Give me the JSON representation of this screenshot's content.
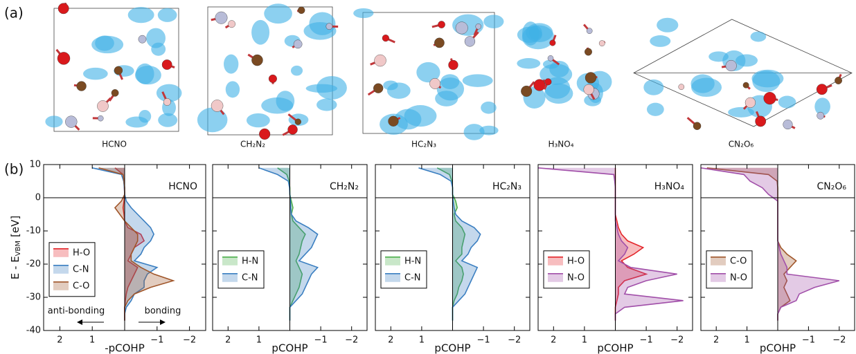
{
  "panel_labels": [
    "(a)",
    "(b)"
  ],
  "structures": [
    {
      "label": "HCNO"
    },
    {
      "label": "CH₂N₂"
    },
    {
      "label": "HC₂N₃"
    },
    {
      "label": "H₃NO₄"
    },
    {
      "label": "CN₂O₆"
    }
  ],
  "y_label": {
    "text": "E - E",
    "subscript": "VBM",
    "unit": "[eV]"
  },
  "chart_data": [
    {
      "type": "area",
      "panel_title": "HCNO",
      "x_label": "-pCOHP",
      "annotations": [
        "anti-bonding",
        "bonding"
      ],
      "y": [
        9,
        7,
        5,
        3,
        1,
        -1,
        -3,
        -5,
        -7,
        -9,
        -11,
        -13,
        -15,
        -17,
        -19,
        -21,
        -23,
        -25,
        -27,
        -29,
        -31,
        -33,
        -35,
        -37
      ],
      "series": [
        {
          "name": "H-O",
          "color": "#e3262b",
          "values": [
            0.3,
            0.05,
            0.02,
            0.01,
            0,
            0.02,
            0.05,
            0.02,
            0,
            -0.1,
            -0.5,
            -0.6,
            -0.3,
            -0.2,
            -0.1,
            -0.4,
            -0.3,
            -0.2,
            -0.1,
            -0.05,
            -0.02,
            0,
            0,
            0
          ]
        },
        {
          "name": "C-N",
          "color": "#3b7fc1",
          "values": [
            1.0,
            0.1,
            0.03,
            0.01,
            0,
            -0.05,
            -0.2,
            -0.4,
            -0.6,
            -0.8,
            -0.9,
            -0.8,
            -0.6,
            -0.5,
            -0.3,
            -1.0,
            -0.7,
            -0.6,
            -0.6,
            -0.3,
            -0.2,
            -0.05,
            0,
            0
          ]
        },
        {
          "name": "C-O",
          "color": "#a0562a",
          "values": [
            0.8,
            0.05,
            0.02,
            0,
            0,
            0.1,
            0.3,
            0.15,
            0,
            -0.2,
            -0.4,
            -0.4,
            -0.3,
            -0.2,
            -0.2,
            -0.5,
            -0.9,
            -1.5,
            -0.8,
            -0.3,
            -0.1,
            0,
            0,
            0
          ]
        }
      ],
      "xlim": [
        2.5,
        -2.5
      ],
      "xticks": [
        2,
        1,
        {
          "value": -1,
          "label": "−1"
        },
        {
          "value": -2,
          "label": "−2"
        }
      ],
      "ylim": [
        -40,
        10
      ],
      "yticks": [
        -40,
        -30,
        -20,
        -10,
        0,
        10
      ],
      "show_ytick_labels": true,
      "hline": 0,
      "legend": "center left"
    },
    {
      "type": "area",
      "panel_title": "CH₂N₂",
      "x_label": "pCOHP",
      "y": [
        9,
        7,
        5,
        3,
        1,
        -1,
        -3,
        -5,
        -7,
        -9,
        -11,
        -13,
        -15,
        -17,
        -19,
        -21,
        -23,
        -25,
        -27,
        -29,
        -31,
        -33,
        -35,
        -37
      ],
      "series": [
        {
          "name": "H-N",
          "color": "#4cae4c",
          "values": [
            0.4,
            0.1,
            0.02,
            0,
            0,
            -0.05,
            -0.1,
            -0.05,
            -0.1,
            -0.3,
            -0.5,
            -0.4,
            -0.35,
            -0.3,
            -0.2,
            -0.3,
            -0.4,
            -0.35,
            -0.3,
            -0.2,
            -0.1,
            0,
            0,
            0
          ]
        },
        {
          "name": "C-N",
          "color": "#3b7fc1",
          "values": [
            1.0,
            0.4,
            0.05,
            0.01,
            0,
            -0.02,
            -0.03,
            -0.05,
            -0.2,
            -0.6,
            -0.9,
            -0.8,
            -0.7,
            -0.5,
            -0.3,
            -0.9,
            -0.7,
            -0.6,
            -0.5,
            -0.4,
            -0.2,
            0,
            0,
            0
          ]
        }
      ],
      "xlim": [
        2.5,
        -2.5
      ],
      "xticks": [
        2,
        1,
        {
          "value": -1,
          "label": "−1"
        },
        {
          "value": -2,
          "label": "−2"
        }
      ],
      "ylim": [
        -40,
        10
      ],
      "yticks": [
        -40,
        -30,
        -20,
        -10,
        0,
        10
      ],
      "show_ytick_labels": false,
      "hline": 0,
      "legend": "center left"
    },
    {
      "type": "area",
      "panel_title": "HC₂N₃",
      "x_label": "pCOHP",
      "y": [
        9,
        7,
        5,
        3,
        1,
        -1,
        -3,
        -5,
        -7,
        -9,
        -11,
        -13,
        -15,
        -17,
        -19,
        -21,
        -23,
        -25,
        -27,
        -29,
        -31,
        -33,
        -35,
        -37
      ],
      "series": [
        {
          "name": "H-N",
          "color": "#4cae4c",
          "values": [
            0.5,
            0.1,
            0.02,
            0,
            0,
            -0.1,
            -0.15,
            -0.05,
            -0.1,
            -0.3,
            -0.4,
            -0.35,
            -0.3,
            -0.3,
            -0.1,
            -0.3,
            -0.35,
            -0.3,
            -0.2,
            -0.15,
            -0.05,
            0,
            0,
            0
          ]
        },
        {
          "name": "C-N",
          "color": "#3b7fc1",
          "values": [
            1.1,
            0.4,
            0.05,
            0,
            0,
            -0.02,
            -0.05,
            -0.1,
            -0.3,
            -0.7,
            -0.9,
            -0.8,
            -0.6,
            -0.5,
            -0.3,
            -0.8,
            -0.7,
            -0.6,
            -0.5,
            -0.4,
            -0.2,
            0,
            0,
            0
          ]
        }
      ],
      "xlim": [
        2.5,
        -2.5
      ],
      "xticks": [
        2,
        1,
        {
          "value": -1,
          "label": "−1"
        },
        {
          "value": -2,
          "label": "−2"
        }
      ],
      "ylim": [
        -40,
        10
      ],
      "yticks": [
        -40,
        -30,
        -20,
        -10,
        0,
        10
      ],
      "show_ytick_labels": false,
      "hline": 0,
      "legend": "center left"
    },
    {
      "type": "area",
      "panel_title": "H₃NO₄",
      "x_label": "pCOHP",
      "y": [
        9,
        7,
        5,
        3,
        1,
        -1,
        -3,
        -5,
        -7,
        -9,
        -11,
        -13,
        -15,
        -17,
        -19,
        -21,
        -23,
        -25,
        -27,
        -29,
        -31,
        -33,
        -35,
        -37
      ],
      "series": [
        {
          "name": "H-O",
          "color": "#e3262b",
          "values": [
            0,
            0,
            0,
            0,
            0,
            0,
            0,
            0,
            -0.05,
            -0.1,
            -0.2,
            -0.4,
            -0.9,
            -0.6,
            -0.2,
            -0.4,
            -1.0,
            -0.3,
            -0.1,
            -0.1,
            -0.05,
            0,
            0,
            0
          ]
        },
        {
          "name": "N-O",
          "color": "#a14fa9",
          "values": [
            2.5,
            0.05,
            0.02,
            0,
            0,
            0,
            0,
            0,
            0,
            -0.05,
            -0.1,
            -0.2,
            -0.4,
            -0.3,
            -0.1,
            -0.5,
            -2.0,
            -1.0,
            -0.4,
            -0.3,
            -2.2,
            -0.3,
            0,
            0
          ]
        }
      ],
      "xlim": [
        2.5,
        -2.5
      ],
      "xticks": [
        2,
        1,
        {
          "value": -1,
          "label": "−1"
        },
        {
          "value": -2,
          "label": "−2"
        }
      ],
      "ylim": [
        -40,
        10
      ],
      "yticks": [
        -40,
        -30,
        -20,
        -10,
        0,
        10
      ],
      "show_ytick_labels": false,
      "hline": 0,
      "legend": "center left"
    },
    {
      "type": "area",
      "panel_title": "CN₂O₆",
      "x_label": "pCOHP",
      "y": [
        9,
        7,
        5,
        3,
        1,
        -1,
        -3,
        -5,
        -7,
        -9,
        -11,
        -13,
        -15,
        -17,
        -19,
        -21,
        -23,
        -25,
        -27,
        -29,
        -31,
        -33,
        -35,
        -37
      ],
      "series": [
        {
          "name": "C-O",
          "color": "#a0562a",
          "values": [
            2.3,
            0.3,
            0.02,
            0,
            0,
            0,
            0,
            0,
            0,
            0,
            0,
            0,
            -0.1,
            -0.3,
            -0.6,
            -0.4,
            -0.2,
            -0.3,
            -0.2,
            -0.3,
            -0.4,
            -0.1,
            0,
            0
          ]
        },
        {
          "name": "N-O",
          "color": "#a14fa9",
          "values": [
            2.5,
            1.1,
            0.9,
            0.5,
            0.3,
            0,
            0,
            0,
            0,
            0,
            0,
            0,
            -0.05,
            -0.1,
            -0.2,
            -0.3,
            -0.3,
            -2.0,
            -1.2,
            -0.7,
            -0.6,
            -0.1,
            0,
            0
          ]
        }
      ],
      "xlim": [
        2.5,
        -2.5
      ],
      "xticks": [
        2,
        1,
        {
          "value": -1,
          "label": "−1"
        },
        {
          "value": -2,
          "label": "−2"
        }
      ],
      "ylim": [
        -40,
        10
      ],
      "yticks": [
        -40,
        -30,
        -20,
        -10,
        0,
        10
      ],
      "show_ytick_labels": false,
      "hline": 0,
      "legend": "center left"
    }
  ]
}
